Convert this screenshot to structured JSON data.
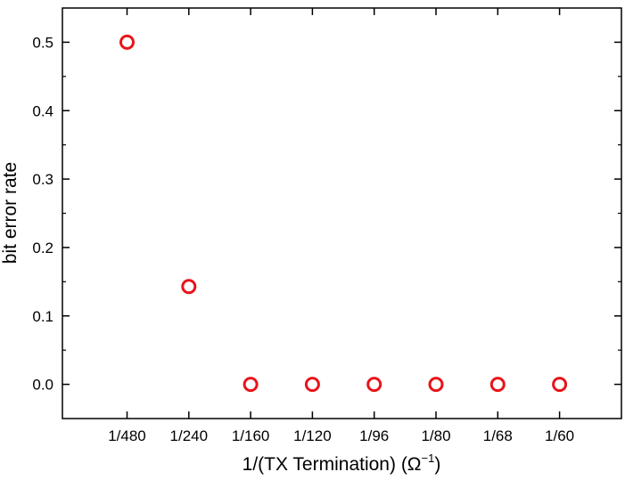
{
  "chart_data": {
    "type": "scatter",
    "xlabel": "1/(TX Termination) (Ω",
    "xlabel_superscript": "−1",
    "xlabel_close": ")",
    "ylabel": "bit error rate",
    "categories": [
      "1/480",
      "1/240",
      "1/160",
      "1/120",
      "1/96",
      "1/80",
      "1/68",
      "1/60"
    ],
    "series": [
      {
        "values": [
          0.5,
          0.143,
          0.0,
          0.0,
          0.0,
          0.0,
          0.0,
          0.0
        ],
        "color": "#e8141a",
        "marker": "open-circle"
      }
    ],
    "ylim": [
      -0.05,
      0.55
    ],
    "yticks": [
      0.0,
      0.1,
      0.2,
      0.3,
      0.4,
      0.5
    ],
    "ytick_labels": [
      "0.0",
      "0.1",
      "0.2",
      "0.3",
      "0.4",
      "0.5"
    ],
    "grid": false,
    "legend": "none"
  }
}
